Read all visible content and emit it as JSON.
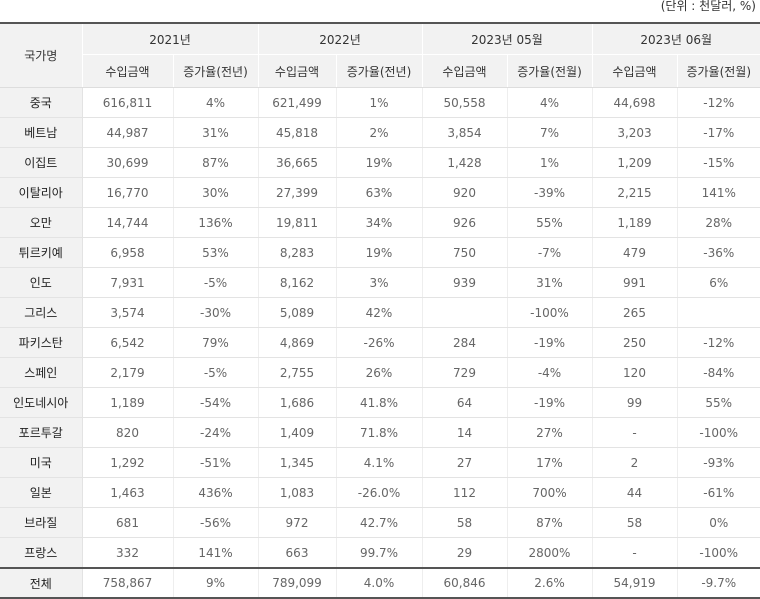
{
  "unit_note": "(단위 : 천달러, %)",
  "header": {
    "country": "국가명",
    "periods": [
      "2021년",
      "2022년",
      "2023년 05월",
      "2023년 06월"
    ],
    "subheaders": [
      "수입금액",
      "증가율(전년)",
      "수입금액",
      "증가율(전년)",
      "수입금액",
      "증가율(전월)",
      "수입금액",
      "증가율(전월)"
    ]
  },
  "rows": [
    {
      "country": "중국",
      "values": [
        "616,811",
        "4%",
        "621,499",
        "1%",
        "50,558",
        "4%",
        "44,698",
        "-12%"
      ]
    },
    {
      "country": "베트남",
      "values": [
        "44,987",
        "31%",
        "45,818",
        "2%",
        "3,854",
        "7%",
        "3,203",
        "-17%"
      ]
    },
    {
      "country": "이집트",
      "values": [
        "30,699",
        "87%",
        "36,665",
        "19%",
        "1,428",
        "1%",
        "1,209",
        "-15%"
      ]
    },
    {
      "country": "이탈리아",
      "values": [
        "16,770",
        "30%",
        "27,399",
        "63%",
        "920",
        "-39%",
        "2,215",
        "141%"
      ]
    },
    {
      "country": "오만",
      "values": [
        "14,744",
        "136%",
        "19,811",
        "34%",
        "926",
        "55%",
        "1,189",
        "28%"
      ]
    },
    {
      "country": "튀르키예",
      "values": [
        "6,958",
        "53%",
        "8,283",
        "19%",
        "750",
        "-7%",
        "479",
        "-36%"
      ]
    },
    {
      "country": "인도",
      "values": [
        "7,931",
        "-5%",
        "8,162",
        "3%",
        "939",
        "31%",
        "991",
        "6%"
      ]
    },
    {
      "country": "그리스",
      "values": [
        "3,574",
        "-30%",
        "5,089",
        "42%",
        "",
        "-100%",
        "265",
        ""
      ]
    },
    {
      "country": "파키스탄",
      "values": [
        "6,542",
        "79%",
        "4,869",
        "-26%",
        "284",
        "-19%",
        "250",
        "-12%"
      ]
    },
    {
      "country": "스페인",
      "values": [
        "2,179",
        "-5%",
        "2,755",
        "26%",
        "729",
        "-4%",
        "120",
        "-84%"
      ]
    },
    {
      "country": "인도네시아",
      "values": [
        "1,189",
        "-54%",
        "1,686",
        "41.8%",
        "64",
        "-19%",
        "99",
        "55%"
      ]
    },
    {
      "country": "포르투갈",
      "values": [
        "820",
        "-24%",
        "1,409",
        "71.8%",
        "14",
        "27%",
        "-",
        "-100%"
      ]
    },
    {
      "country": "미국",
      "values": [
        "1,292",
        "-51%",
        "1,345",
        "4.1%",
        "27",
        "17%",
        "2",
        "-93%"
      ]
    },
    {
      "country": "일본",
      "values": [
        "1,463",
        "436%",
        "1,083",
        "-26.0%",
        "112",
        "700%",
        "44",
        "-61%"
      ]
    },
    {
      "country": "브라질",
      "values": [
        "681",
        "-56%",
        "972",
        "42.7%",
        "58",
        "87%",
        "58",
        "0%"
      ]
    },
    {
      "country": "프랑스",
      "values": [
        "332",
        "141%",
        "663",
        "99.7%",
        "29",
        "2800%",
        "-",
        "-100%"
      ]
    }
  ],
  "total": {
    "country": "전체",
    "values": [
      "758,867",
      "9%",
      "789,099",
      "4.0%",
      "60,846",
      "2.6%",
      "54,919",
      "-9.7%"
    ]
  }
}
